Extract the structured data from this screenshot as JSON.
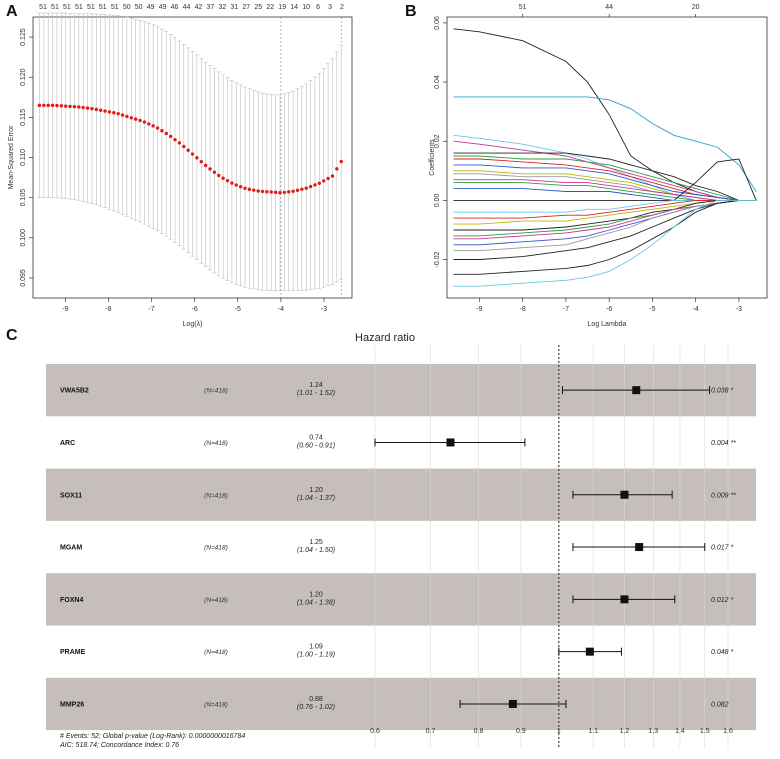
{
  "panels": {
    "a": "A",
    "b": "B",
    "c": "C"
  },
  "chart_data": [
    {
      "type": "scatter",
      "panel": "A",
      "title": "",
      "xlabel": "Log(λ)",
      "ylabel": "Mean-Squared Error",
      "xlim": [
        -9.75,
        -2.35
      ],
      "ylim": [
        0.0925,
        0.1275
      ],
      "x_ticks": [
        "-9",
        "-8",
        "-7",
        "-6",
        "-5",
        "-4",
        "-3"
      ],
      "x_tick_values": [
        -9,
        -8,
        -7,
        -6,
        -5,
        -4,
        -3
      ],
      "y_ticks": [
        "0.095",
        "0.100",
        "0.105",
        "0.110",
        "0.115",
        "0.120",
        "0.125"
      ],
      "y_tick_values": [
        0.095,
        0.1,
        0.105,
        0.11,
        0.115,
        0.12,
        0.125
      ],
      "top_labels": [
        "51",
        "51",
        "51",
        "51",
        "51",
        "51",
        "51",
        "50",
        "50",
        "49",
        "49",
        "46",
        "44",
        "42",
        "37",
        "32",
        "31",
        "27",
        "25",
        "22",
        "19",
        "14",
        "10",
        "6",
        "3",
        "2"
      ],
      "vlines": [
        -4.0,
        -2.6
      ],
      "series": [
        {
          "name": "cross-validated MSE",
          "x": [
            -9.6,
            -9.3,
            -9.0,
            -8.7,
            -8.4,
            -8.1,
            -7.8,
            -7.5,
            -7.2,
            -6.9,
            -6.6,
            -6.3,
            -6.0,
            -5.7,
            -5.4,
            -5.1,
            -4.8,
            -4.5,
            -4.2,
            -4.0,
            -3.7,
            -3.4,
            -3.1,
            -2.8,
            -2.6
          ],
          "values": [
            0.1165,
            0.1165,
            0.1164,
            0.1163,
            0.1161,
            0.1158,
            0.1155,
            0.115,
            0.1145,
            0.1138,
            0.1128,
            0.1116,
            0.1102,
            0.1088,
            0.1076,
            0.1067,
            0.1061,
            0.1058,
            0.1057,
            0.1056,
            0.1058,
            0.1062,
            0.1068,
            0.1077,
            0.1095
          ],
          "upper": [
            0.128,
            0.128,
            0.128,
            0.1279,
            0.1279,
            0.1278,
            0.1277,
            0.1274,
            0.127,
            0.1264,
            0.1255,
            0.1243,
            0.123,
            0.1217,
            0.1205,
            0.1195,
            0.1187,
            0.1181,
            0.1178,
            0.1178,
            0.1183,
            0.1192,
            0.1205,
            0.1223,
            0.124
          ],
          "lower": [
            0.105,
            0.105,
            0.1049,
            0.1047,
            0.1043,
            0.1038,
            0.1032,
            0.1025,
            0.1018,
            0.101,
            0.1,
            0.0988,
            0.0975,
            0.0962,
            0.0951,
            0.0943,
            0.0938,
            0.0935,
            0.0934,
            0.0934,
            0.0934,
            0.0935,
            0.0937,
            0.0942,
            0.0948
          ]
        }
      ]
    },
    {
      "type": "line",
      "panel": "B",
      "title": "",
      "xlabel": "Log Lambda",
      "ylabel": "Coefficients",
      "xlim": [
        -9.75,
        -2.35
      ],
      "ylim": [
        -0.033,
        0.062
      ],
      "x_ticks": [
        "-9",
        "-8",
        "-7",
        "-6",
        "-5",
        "-4",
        "-3"
      ],
      "x_tick_values": [
        -9,
        -8,
        -7,
        -6,
        -5,
        -4,
        -3
      ],
      "y_ticks": [
        "-0.02",
        "0.00",
        "0.02",
        "0.04",
        "0.06"
      ],
      "y_tick_values": [
        -0.02,
        0.0,
        0.02,
        0.04,
        0.06
      ],
      "top_labels": [
        "51",
        "44",
        "20"
      ],
      "top_label_x": [
        -8.0,
        -6.0,
        -4.0
      ],
      "x": [
        -9.6,
        -9.0,
        -8.0,
        -7.0,
        -6.5,
        -6.0,
        -5.5,
        -5.0,
        -4.5,
        -4.0,
        -3.5,
        -3.0,
        -2.6
      ],
      "series": [
        {
          "name": "s1",
          "color": "#222222",
          "values": [
            0.058,
            0.057,
            0.054,
            0.047,
            0.04,
            0.029,
            0.015,
            0.01,
            0.006,
            0.003,
            0.001,
            0.0,
            0.0
          ]
        },
        {
          "name": "s2",
          "color": "#29a3d6",
          "values": [
            0.035,
            0.035,
            0.035,
            0.035,
            0.035,
            0.034,
            0.031,
            0.026,
            0.022,
            0.02,
            0.018,
            0.012,
            0.003
          ]
        },
        {
          "name": "s3",
          "color": "#6ac7e8",
          "values": [
            0.022,
            0.021,
            0.019,
            0.016,
            0.014,
            0.011,
            0.008,
            0.005,
            0.002,
            0.0,
            0.0,
            0.0,
            0.0
          ]
        },
        {
          "name": "s4",
          "color": "#cc3399",
          "values": [
            0.02,
            0.019,
            0.017,
            0.015,
            0.013,
            0.011,
            0.009,
            0.007,
            0.005,
            0.003,
            0.001,
            0.0,
            0.0
          ]
        },
        {
          "name": "s5",
          "color": "#222222",
          "values": [
            0.016,
            0.016,
            0.016,
            0.016,
            0.015,
            0.014,
            0.012,
            0.01,
            0.008,
            0.005,
            0.003,
            0.0,
            0.0
          ]
        },
        {
          "name": "s6",
          "color": "#2e9c3a",
          "values": [
            0.015,
            0.015,
            0.014,
            0.014,
            0.013,
            0.012,
            0.01,
            0.008,
            0.006,
            0.004,
            0.002,
            0.0,
            0.0
          ]
        },
        {
          "name": "s7",
          "color": "#dd2222",
          "values": [
            0.014,
            0.014,
            0.013,
            0.012,
            0.011,
            0.01,
            0.008,
            0.006,
            0.004,
            0.002,
            0.001,
            0.0,
            0.0
          ]
        },
        {
          "name": "s8",
          "color": "#3355cc",
          "values": [
            0.012,
            0.012,
            0.011,
            0.011,
            0.01,
            0.009,
            0.007,
            0.005,
            0.003,
            0.002,
            0.001,
            0.0,
            0.0
          ]
        },
        {
          "name": "s9",
          "color": "#b8b800",
          "values": [
            0.01,
            0.01,
            0.009,
            0.009,
            0.008,
            0.007,
            0.006,
            0.004,
            0.002,
            0.001,
            0.0,
            0.0,
            0.0
          ]
        },
        {
          "name": "s10",
          "color": "#999999",
          "values": [
            0.009,
            0.009,
            0.008,
            0.008,
            0.007,
            0.006,
            0.005,
            0.003,
            0.002,
            0.001,
            0.0,
            0.0,
            0.0
          ]
        },
        {
          "name": "s11",
          "color": "#cc3399",
          "values": [
            0.007,
            0.007,
            0.007,
            0.006,
            0.006,
            0.005,
            0.004,
            0.003,
            0.002,
            0.001,
            0.0,
            0.0,
            0.0
          ]
        },
        {
          "name": "s12",
          "color": "#2e9c3a",
          "values": [
            0.006,
            0.006,
            0.006,
            0.005,
            0.005,
            0.004,
            0.003,
            0.002,
            0.001,
            0.0,
            0.0,
            0.0,
            0.0
          ]
        },
        {
          "name": "s13",
          "color": "#222222",
          "values": [
            0.0,
            0.0,
            0.0,
            0.0,
            0.0,
            0.0,
            0.0,
            0.0,
            0.0,
            0.006,
            0.013,
            0.014,
            0.0
          ]
        },
        {
          "name": "s14",
          "color": "#3355cc",
          "values": [
            0.004,
            0.004,
            0.004,
            0.003,
            0.003,
            0.003,
            0.002,
            0.001,
            0.0,
            0.0,
            0.0,
            0.0,
            0.0
          ]
        },
        {
          "name": "s15",
          "color": "#6ac7e8",
          "values": [
            -0.004,
            -0.004,
            -0.004,
            -0.004,
            -0.003,
            -0.003,
            -0.002,
            -0.001,
            0.0,
            0.0,
            0.0,
            0.0,
            0.0
          ]
        },
        {
          "name": "s16",
          "color": "#dd2222",
          "values": [
            -0.006,
            -0.006,
            -0.006,
            -0.005,
            -0.005,
            -0.004,
            -0.003,
            -0.002,
            -0.001,
            0.0,
            0.0,
            0.0,
            0.0
          ]
        },
        {
          "name": "s17",
          "color": "#b8b800",
          "values": [
            -0.008,
            -0.008,
            -0.007,
            -0.007,
            -0.006,
            -0.005,
            -0.004,
            -0.003,
            -0.002,
            -0.001,
            0.0,
            0.0,
            0.0
          ]
        },
        {
          "name": "s18",
          "color": "#222222",
          "values": [
            -0.01,
            -0.01,
            -0.01,
            -0.009,
            -0.008,
            -0.007,
            -0.006,
            -0.004,
            -0.003,
            -0.001,
            0.0,
            0.0,
            0.0
          ]
        },
        {
          "name": "s19",
          "color": "#2e9c3a",
          "values": [
            -0.012,
            -0.012,
            -0.011,
            -0.01,
            -0.009,
            -0.008,
            -0.006,
            -0.005,
            -0.003,
            -0.002,
            -0.001,
            0.0,
            0.0
          ]
        },
        {
          "name": "s20",
          "color": "#cc3399",
          "values": [
            -0.013,
            -0.013,
            -0.012,
            -0.011,
            -0.01,
            -0.009,
            -0.007,
            -0.005,
            -0.003,
            -0.002,
            -0.001,
            0.0,
            0.0
          ]
        },
        {
          "name": "s21",
          "color": "#3355cc",
          "values": [
            -0.015,
            -0.015,
            -0.014,
            -0.013,
            -0.012,
            -0.01,
            -0.008,
            -0.006,
            -0.004,
            -0.002,
            -0.001,
            0.0,
            0.0
          ]
        },
        {
          "name": "s22",
          "color": "#999999",
          "values": [
            -0.017,
            -0.017,
            -0.016,
            -0.015,
            -0.013,
            -0.011,
            -0.009,
            -0.006,
            -0.004,
            -0.002,
            -0.001,
            0.0,
            0.0
          ]
        },
        {
          "name": "s23",
          "color": "#222222",
          "values": [
            -0.02,
            -0.02,
            -0.019,
            -0.017,
            -0.016,
            -0.014,
            -0.012,
            -0.009,
            -0.006,
            -0.003,
            -0.001,
            0.0,
            0.0
          ]
        },
        {
          "name": "s24",
          "color": "#222222",
          "values": [
            -0.025,
            -0.025,
            -0.024,
            -0.023,
            -0.022,
            -0.02,
            -0.017,
            -0.013,
            -0.009,
            -0.004,
            -0.001,
            0.0,
            0.0
          ]
        },
        {
          "name": "s25",
          "color": "#6ac7e8",
          "values": [
            -0.029,
            -0.029,
            -0.028,
            -0.027,
            -0.026,
            -0.024,
            -0.02,
            -0.015,
            -0.009,
            -0.003,
            0.0,
            0.0,
            0.0
          ]
        }
      ]
    },
    {
      "type": "forest",
      "panel": "C",
      "title": "Hazard ratio",
      "x_ticks": [
        "0.6",
        "0.7",
        "0.8",
        "0.9",
        "1",
        "1.1",
        "1.2",
        "1.3",
        "1.4",
        "1.5",
        "1.6"
      ],
      "x_tick_values": [
        0.6,
        0.7,
        0.8,
        0.9,
        1.0,
        1.1,
        1.2,
        1.3,
        1.4,
        1.5,
        1.6
      ],
      "xlim": [
        0.6,
        1.6
      ],
      "log_scale": true,
      "reference": 1.0,
      "rows": [
        {
          "name": "VWA5B2",
          "n": "(N=418)",
          "hr": 1.24,
          "lo": 1.01,
          "hi": 1.52,
          "hr_text": "1.24",
          "ci_text": "(1.01 - 1.52)",
          "p_text": "0.038 *",
          "shaded": true
        },
        {
          "name": "ARC",
          "n": "(N=418)",
          "hr": 0.74,
          "lo": 0.6,
          "hi": 0.91,
          "hr_text": "0.74",
          "ci_text": "(0.60 - 0.91)",
          "p_text": "0.004 **",
          "shaded": false
        },
        {
          "name": "SOX11",
          "n": "(N=418)",
          "hr": 1.2,
          "lo": 1.04,
          "hi": 1.37,
          "hr_text": "1.20",
          "ci_text": "(1.04 - 1.37)",
          "p_text": "0.009 **",
          "shaded": true
        },
        {
          "name": "MGAM",
          "n": "(N=418)",
          "hr": 1.25,
          "lo": 1.04,
          "hi": 1.5,
          "hr_text": "1.25",
          "ci_text": "(1.04 - 1.50)",
          "p_text": "0.017 *",
          "shaded": false
        },
        {
          "name": "FOXN4",
          "n": "(N=418)",
          "hr": 1.2,
          "lo": 1.04,
          "hi": 1.38,
          "hr_text": "1.20",
          "ci_text": "(1.04 - 1.38)",
          "p_text": "0.012 *",
          "shaded": true
        },
        {
          "name": "PRAME",
          "n": "(N=418)",
          "hr": 1.09,
          "lo": 1.0,
          "hi": 1.19,
          "hr_text": "1.09",
          "ci_text": "(1.00 - 1.19)",
          "p_text": "0.048 *",
          "shaded": false
        },
        {
          "name": "MMP26",
          "n": "(N=418)",
          "hr": 0.88,
          "lo": 0.76,
          "hi": 1.02,
          "hr_text": "0.88",
          "ci_text": "(0.76 - 1.02)",
          "p_text": "0.082",
          "shaded": true
        }
      ],
      "footnote_1": "# Events: 52; Global p-value (Log-Rank): 0.0000000016784",
      "footnote_2": "AIC: 518.74; Concordance Index: 0.76"
    }
  ]
}
